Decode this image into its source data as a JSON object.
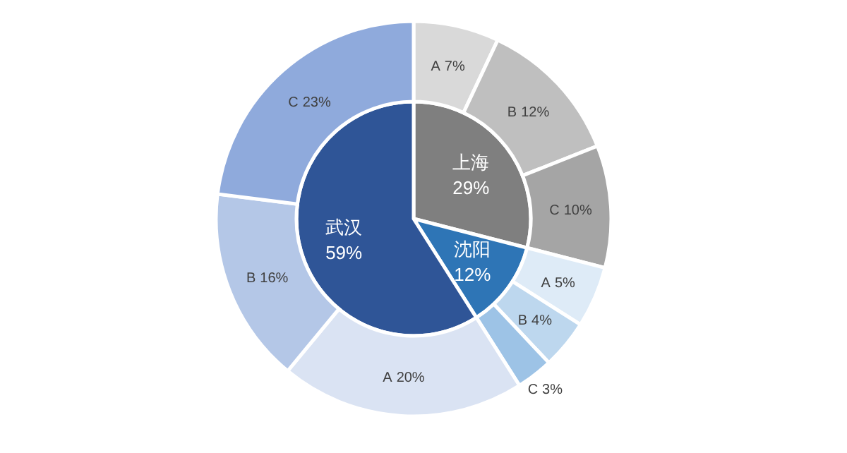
{
  "chart_data": [
    {
      "type": "pie",
      "categories": [
        "上海",
        "沈阳",
        "武汉"
      ],
      "values": [
        29,
        12,
        59
      ],
      "colors": [
        "#7f7f7f",
        "#2e75b6",
        "#2f5597"
      ],
      "value_labels": [
        "29%",
        "12%",
        "59%"
      ]
    },
    {
      "type": "donut",
      "categories": [
        "A",
        "B",
        "C",
        "A",
        "B",
        "C",
        "A",
        "B",
        "C"
      ],
      "values": [
        7,
        12,
        10,
        5,
        4,
        3,
        20,
        16,
        23
      ],
      "colors": [
        "#d9d9d9",
        "#bfbfbf",
        "#a5a5a5",
        "#deebf7",
        "#bdd7ee",
        "#9dc3e6",
        "#dae3f3",
        "#b4c7e7",
        "#8faadc"
      ],
      "value_labels": [
        "7%",
        "12%",
        "10%",
        "5%",
        "4%",
        "3%",
        "20%",
        "16%",
        "23%"
      ]
    }
  ]
}
